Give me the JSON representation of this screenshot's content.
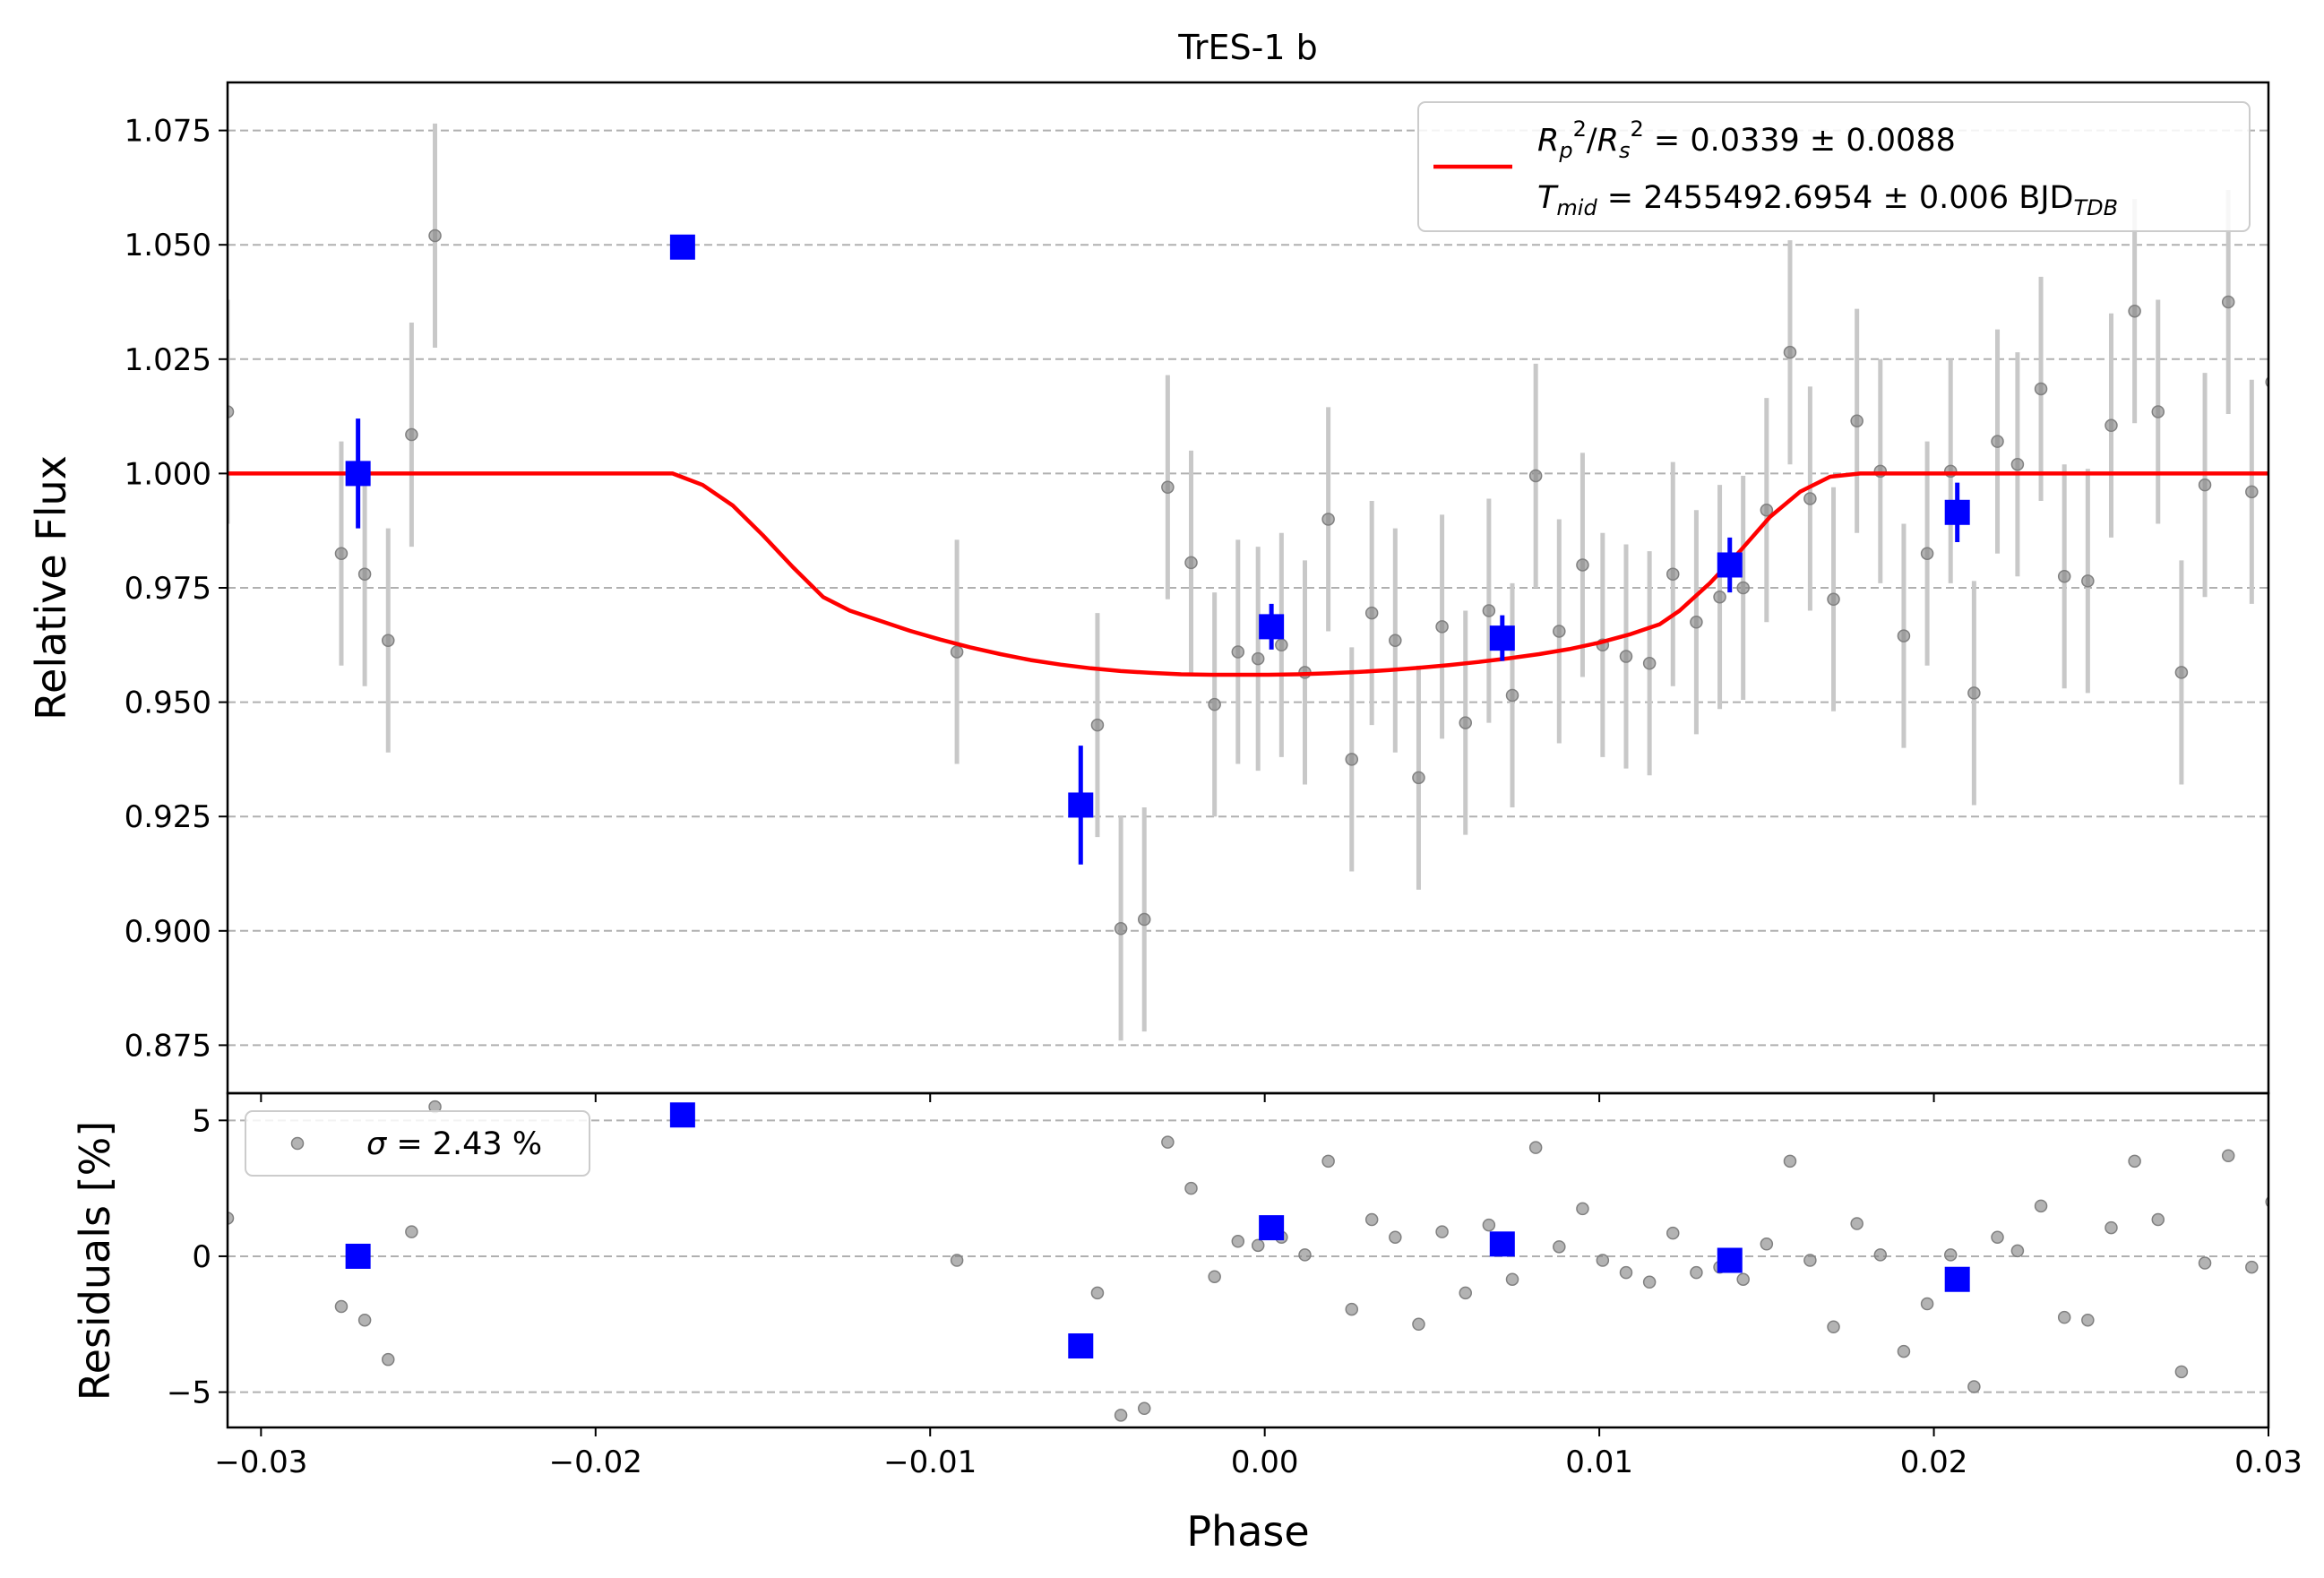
{
  "chart_data": [
    {
      "type": "scatter",
      "panel": "light-curve",
      "title": "TrES-1 b",
      "xlabel": "",
      "ylabel": "Relative Flux",
      "xlim": [
        -0.031,
        0.03
      ],
      "ylim": [
        0.8645,
        1.0855
      ],
      "grid": "horizontal dashed",
      "legend_position": "top-right",
      "xticks": [
        {
          "value": -0.03,
          "label": "−0.03"
        },
        {
          "value": -0.02,
          "label": "−0.02"
        },
        {
          "value": -0.01,
          "label": "−0.01"
        },
        {
          "value": 0.0,
          "label": "0.00"
        },
        {
          "value": 0.01,
          "label": "0.01"
        },
        {
          "value": 0.02,
          "label": "0.02"
        },
        {
          "value": 0.03,
          "label": "0.03"
        }
      ],
      "yticks": [
        {
          "value": 0.875,
          "label": "0.875"
        },
        {
          "value": 0.9,
          "label": "0.900"
        },
        {
          "value": 0.925,
          "label": "0.925"
        },
        {
          "value": 0.95,
          "label": "0.950"
        },
        {
          "value": 0.975,
          "label": "0.975"
        },
        {
          "value": 1.0,
          "label": "1.000"
        },
        {
          "value": 1.025,
          "label": "1.025"
        },
        {
          "value": 1.05,
          "label": "1.050"
        },
        {
          "value": 1.075,
          "label": "1.075"
        }
      ],
      "legend": {
        "line1_lhs_symbols": [
          "R",
          "p",
          "2",
          "/",
          "R",
          "s",
          "2"
        ],
        "line1_rhs": " = 0.0339 ± 0.0088",
        "line2_lhs_symbols": [
          "T",
          "mid"
        ],
        "line2_rhs": " = 2455492.6954 ± 0.006 BJD",
        "line2_unit_sub": "TDB"
      },
      "series": [
        {
          "kind": "raw_points",
          "color": "#808080",
          "error_color": "#c8c8c8",
          "x": [
            -0.031,
            -0.0276,
            -0.0269,
            -0.0262,
            -0.0255,
            -0.0248,
            -0.0092,
            -0.005,
            -0.0043,
            -0.0036,
            -0.0029,
            -0.0022,
            -0.0015,
            -0.0008,
            -0.0002,
            0.0005,
            0.0012,
            0.0019,
            0.0026,
            0.0032,
            0.0039,
            0.0046,
            0.0053,
            0.006,
            0.0067,
            0.0074,
            0.0081,
            0.0088,
            0.0095,
            0.0101,
            0.0108,
            0.0115,
            0.0122,
            0.0129,
            0.0136,
            0.0143,
            0.015,
            0.0157,
            0.0163,
            0.017,
            0.0177,
            0.0184,
            0.0191,
            0.0198,
            0.0205,
            0.0212,
            0.0219,
            0.0225,
            0.0232,
            0.0239,
            0.0246,
            0.0253,
            0.026,
            0.0267,
            0.0274,
            0.0281,
            0.0288,
            0.0295,
            0.0301
          ],
          "y": [
            1.0135,
            0.9825,
            0.978,
            0.9635,
            1.0085,
            1.052,
            0.961,
            0.945,
            0.9005,
            0.9025,
            0.997,
            0.9805,
            0.9495,
            0.961,
            0.9595,
            0.9625,
            0.9565,
            0.99,
            0.9375,
            0.9695,
            0.9635,
            0.9335,
            0.9665,
            0.9455,
            0.97,
            0.9515,
            0.9995,
            0.9655,
            0.98,
            0.9625,
            0.96,
            0.9585,
            0.978,
            0.9675,
            0.973,
            0.975,
            0.992,
            1.0265,
            0.9945,
            0.9725,
            1.0115,
            1.0005,
            0.9645,
            0.9825,
            1.0005,
            0.952,
            1.007,
            1.002,
            1.0185,
            0.9775,
            0.9765,
            1.0105,
            1.0355,
            1.0135,
            0.9565,
            0.9975,
            1.0375,
            0.996,
            1.02
          ],
          "yerr": 0.0245
        },
        {
          "kind": "binned_points",
          "color": "#0000ff",
          "x": [
            -0.0271,
            -0.0174,
            -0.0055,
            0.0002,
            0.0071,
            0.0139,
            0.0207
          ],
          "y": [
            1.0,
            1.0495,
            0.9275,
            0.9665,
            0.964,
            0.98,
            0.9915
          ],
          "yerr": [
            0.012,
            0.0,
            0.013,
            0.005,
            0.005,
            0.006,
            0.0065
          ]
        },
        {
          "kind": "model",
          "color": "#ff0000",
          "x": [
            -0.031,
            -0.0177,
            -0.0168,
            -0.0159,
            -0.015,
            -0.0141,
            -0.0132,
            -0.0124,
            -0.0115,
            -0.0106,
            -0.0097,
            -0.0088,
            -0.0079,
            -0.007,
            -0.0061,
            -0.0052,
            -0.0043,
            -0.0034,
            -0.0025,
            -0.0016,
            -0.0008,
            0.0001,
            0.001,
            0.0019,
            0.0028,
            0.0037,
            0.0046,
            0.0055,
            0.0064,
            0.0073,
            0.0082,
            0.0091,
            0.01,
            0.0109,
            0.0118,
            0.0124,
            0.0133,
            0.0142,
            0.0151,
            0.016,
            0.0169,
            0.0178,
            0.03
          ],
          "y": [
            1.0,
            1.0,
            0.9975,
            0.993,
            0.9865,
            0.9795,
            0.973,
            0.97,
            0.9678,
            0.9656,
            0.9637,
            0.962,
            0.9605,
            0.9592,
            0.9582,
            0.9574,
            0.9568,
            0.9564,
            0.9561,
            0.956,
            0.956,
            0.956,
            0.9561,
            0.9563,
            0.9566,
            0.957,
            0.9575,
            0.9581,
            0.9588,
            0.9596,
            0.9605,
            0.9616,
            0.963,
            0.9648,
            0.967,
            0.97,
            0.976,
            0.983,
            0.9905,
            0.996,
            0.9993,
            1.0,
            1.0
          ]
        }
      ]
    },
    {
      "type": "scatter",
      "panel": "residuals",
      "xlabel": "Phase",
      "ylabel": "Residuals [%]",
      "xlim": [
        -0.031,
        0.03
      ],
      "ylim": [
        -6.3,
        6.0
      ],
      "grid": "horizontal dashed",
      "legend_position": "top-left",
      "xticks": [
        {
          "value": -0.03,
          "label": "−0.03"
        },
        {
          "value": -0.02,
          "label": "−0.02"
        },
        {
          "value": -0.01,
          "label": "−0.01"
        },
        {
          "value": 0.0,
          "label": "0.00"
        },
        {
          "value": 0.01,
          "label": "0.01"
        },
        {
          "value": 0.02,
          "label": "0.02"
        },
        {
          "value": 0.03,
          "label": "0.03"
        }
      ],
      "yticks": [
        {
          "value": -5,
          "label": "−5"
        },
        {
          "value": 0,
          "label": "0"
        },
        {
          "value": 5,
          "label": "5"
        }
      ],
      "legend": {
        "sigma_symbol": "σ",
        "sigma_rhs": " = 2.43 %"
      },
      "series": [
        {
          "kind": "raw_residuals",
          "color": "#808080",
          "x": [
            -0.031,
            -0.0276,
            -0.0269,
            -0.0262,
            -0.0255,
            -0.0248,
            -0.0092,
            -0.005,
            -0.0043,
            -0.0036,
            -0.0029,
            -0.0022,
            -0.0015,
            -0.0008,
            -0.0002,
            0.0005,
            0.0012,
            0.0019,
            0.0026,
            0.0032,
            0.0039,
            0.0046,
            0.0053,
            0.006,
            0.0067,
            0.0074,
            0.0081,
            0.0088,
            0.0095,
            0.0101,
            0.0108,
            0.0115,
            0.0122,
            0.0129,
            0.0136,
            0.0143,
            0.015,
            0.0157,
            0.0163,
            0.017,
            0.0177,
            0.0184,
            0.0191,
            0.0198,
            0.0205,
            0.0212,
            0.0219,
            0.0225,
            0.0232,
            0.0239,
            0.0246,
            0.0253,
            0.026,
            0.0267,
            0.0274,
            0.0281,
            0.0288,
            0.0295,
            0.0301
          ],
          "y": [
            1.4,
            -1.85,
            -2.35,
            -3.8,
            0.9,
            5.5,
            -0.15,
            -1.35,
            -5.85,
            -5.6,
            4.2,
            2.5,
            -0.75,
            0.55,
            0.4,
            0.7,
            0.05,
            3.5,
            -1.95,
            1.35,
            0.7,
            -2.5,
            0.9,
            -1.35,
            1.15,
            -0.85,
            4.0,
            0.35,
            1.75,
            -0.15,
            -0.6,
            -0.95,
            0.85,
            -0.6,
            -0.4,
            -0.85,
            0.45,
            3.5,
            -0.15,
            -2.6,
            1.2,
            0.05,
            -3.5,
            -1.75,
            0.05,
            -4.8,
            0.7,
            0.2,
            1.85,
            -2.25,
            -2.35,
            1.05,
            3.5,
            1.35,
            -4.25,
            -0.25,
            3.7,
            -0.4,
            2.0
          ]
        },
        {
          "kind": "binned_residuals",
          "color": "#0000ff",
          "x": [
            -0.0271,
            -0.0174,
            -0.0055,
            0.0002,
            0.0071,
            0.0139,
            0.0207
          ],
          "y": [
            0.0,
            5.2,
            -3.3,
            1.05,
            0.45,
            -0.15,
            -0.85
          ]
        }
      ]
    }
  ]
}
